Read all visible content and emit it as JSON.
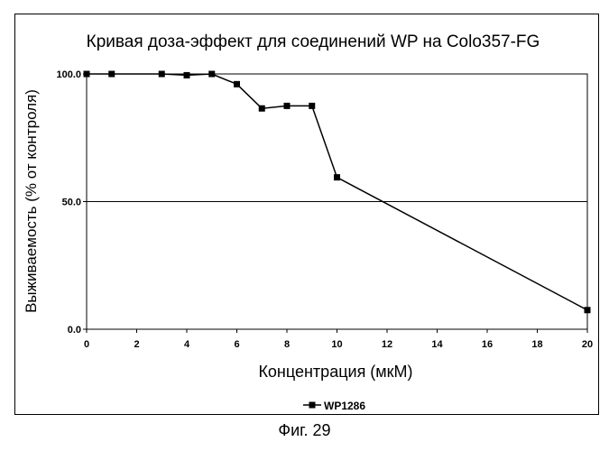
{
  "chart_data": {
    "type": "line",
    "title": "Кривая доза-эффект для соединений WP на Colo357-FG",
    "xlabel": "Концентрация (мкМ)",
    "ylabel": "Выживаемость (% от контроля)",
    "xlim": [
      0,
      20
    ],
    "ylim": [
      0,
      100
    ],
    "x_ticks": [
      0,
      2,
      4,
      6,
      8,
      10,
      12,
      14,
      16,
      18,
      20
    ],
    "y_ticks": [
      "0.0",
      "50.0",
      "100.0"
    ],
    "y_tick_values": [
      0,
      50,
      100
    ],
    "grid": "horizontal",
    "legend": "bottom-center",
    "series": [
      {
        "name": "WP1286",
        "x": [
          0,
          1,
          3,
          4,
          5,
          6,
          7,
          8,
          9,
          10,
          20
        ],
        "values": [
          100,
          100,
          100,
          99.5,
          100,
          96,
          86.5,
          87.5,
          87.5,
          59.5,
          7.5
        ]
      }
    ]
  },
  "figure_caption": "Фиг. 29",
  "colors": {
    "line": "#000000",
    "marker": "#000000"
  }
}
